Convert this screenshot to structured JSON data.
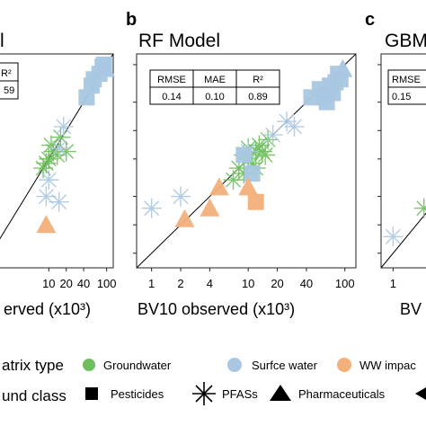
{
  "colors": {
    "groundwater": "#6fbf5e",
    "surface_water": "#a9c7e2",
    "ww_impacted": "#f2b07a",
    "identity_line": "#000000"
  },
  "panels": {
    "left": {
      "title_fragment": "l",
      "table_headers": [
        "R²"
      ],
      "table_values": [
        "59"
      ],
      "x_ticks": [
        "10",
        "20",
        "40",
        "100"
      ],
      "xlabel_fragment": "erved (x10³)"
    },
    "b": {
      "letter": "b",
      "title": "RF Model",
      "table_headers": [
        "RMSE",
        "MAE",
        "R²"
      ],
      "table_values": [
        "0.14",
        "0.10",
        "0.89"
      ],
      "x_ticks": [
        "1",
        "2",
        "4",
        "10",
        "20",
        "40",
        "100"
      ],
      "xlabel": "BV10 observed (x10³)"
    },
    "c": {
      "letter": "c",
      "title_fragment": "GBM",
      "table_headers": [
        "RMSE"
      ],
      "table_values": [
        "0.15"
      ],
      "x_ticks": [
        "1"
      ],
      "xlabel_fragment": "BV"
    }
  },
  "legend": {
    "matrix_label": "atrix type",
    "matrix_items": [
      "Groundwater",
      "Surfce water",
      "WW impac"
    ],
    "compound_label": "und class",
    "compound_items": [
      "Pesticides",
      "PFASs",
      "Pharmaceuticals"
    ]
  },
  "chart_data": [
    {
      "type": "scatter",
      "title": "",
      "xlabel": "erved (x10³)",
      "x_scale": "log",
      "xlim": [
        0.7,
        130
      ],
      "ylim": [
        0.7,
        130
      ],
      "series": [
        {
          "matrix": "surface_water",
          "compound": "pesticide",
          "points": [
            [
              55,
              60
            ],
            [
              75,
              80
            ],
            [
              90,
              100
            ],
            [
              85,
              95
            ],
            [
              60,
              70
            ],
            [
              45,
              45
            ]
          ]
        },
        {
          "matrix": "surface_water",
          "compound": "pharmaceutical",
          "points": [
            [
              95,
              90
            ]
          ]
        },
        {
          "matrix": "groundwater",
          "compound": "pfas",
          "points": [
            [
              10,
              10
            ],
            [
              12,
              12
            ],
            [
              9,
              9
            ],
            [
              14,
              11
            ],
            [
              16,
              17
            ],
            [
              20,
              12
            ],
            [
              11,
              14
            ],
            [
              8,
              8
            ]
          ]
        },
        {
          "matrix": "surface_water",
          "compound": "pfas",
          "points": [
            [
              18,
              22
            ],
            [
              10,
              6
            ],
            [
              9,
              4
            ],
            [
              15,
              3.5
            ],
            [
              15,
              13
            ]
          ]
        },
        {
          "matrix": "ww_impacted",
          "compound": "pharmaceutical",
          "points": [
            [
              9,
              2
            ]
          ]
        }
      ]
    },
    {
      "type": "scatter",
      "title": "RF Model",
      "xlabel": "BV10 observed (x10³)",
      "x_scale": "log",
      "y_scale": "log",
      "xlim": [
        0.7,
        130
      ],
      "ylim": [
        0.7,
        130
      ],
      "series": [
        {
          "matrix": "surface_water",
          "compound": "pesticide",
          "points": [
            [
              55,
              55
            ],
            [
              70,
              60
            ],
            [
              80,
              65
            ],
            [
              60,
              45
            ],
            [
              75,
              50
            ],
            [
              90,
              70
            ],
            [
              65,
              40
            ],
            [
              45,
              45
            ],
            [
              85,
              80
            ]
          ]
        },
        {
          "matrix": "surface_water",
          "compound": "pharmaceutical",
          "points": [
            [
              95,
              90
            ]
          ]
        },
        {
          "matrix": "groundwater",
          "compound": "pfas",
          "points": [
            [
              8,
              8
            ],
            [
              10,
              10
            ],
            [
              12,
              12
            ],
            [
              14,
              12
            ],
            [
              11,
              9
            ],
            [
              9,
              7
            ],
            [
              13,
              14
            ],
            [
              15,
              11
            ],
            [
              7,
              6
            ],
            [
              16,
              16
            ],
            [
              10,
              13
            ],
            [
              12,
              8
            ],
            [
              9,
              11
            ]
          ]
        },
        {
          "matrix": "surface_water",
          "compound": "pfas",
          "points": [
            [
              1,
              3
            ],
            [
              2,
              4
            ],
            [
              25,
              25
            ],
            [
              30,
              22
            ],
            [
              10,
              12
            ],
            [
              18,
              18
            ]
          ]
        },
        {
          "matrix": "surface_water",
          "compound": "pesticide",
          "points": [
            [
              9,
              11
            ],
            [
              11,
              7
            ]
          ]
        },
        {
          "matrix": "ww_impacted",
          "compound": "pharmaceutical",
          "points": [
            [
              2.2,
              2.3
            ],
            [
              4,
              3
            ],
            [
              10,
              5
            ],
            [
              5,
              5
            ]
          ]
        },
        {
          "matrix": "ww_impacted",
          "compound": "pesticide",
          "points": [
            [
              12,
              3.5
            ]
          ]
        }
      ]
    },
    {
      "type": "scatter",
      "title": "GBM",
      "xlabel": "BV",
      "x_scale": "log",
      "xlim": [
        0.7,
        130
      ],
      "ylim": [
        0.7,
        130
      ],
      "series": [
        {
          "matrix": "surface_water",
          "compound": "pfas",
          "points": [
            [
              1,
              1.5
            ]
          ]
        },
        {
          "matrix": "groundwater",
          "compound": "pfas",
          "points": [
            [
              2.5,
              3
            ]
          ]
        }
      ]
    }
  ]
}
